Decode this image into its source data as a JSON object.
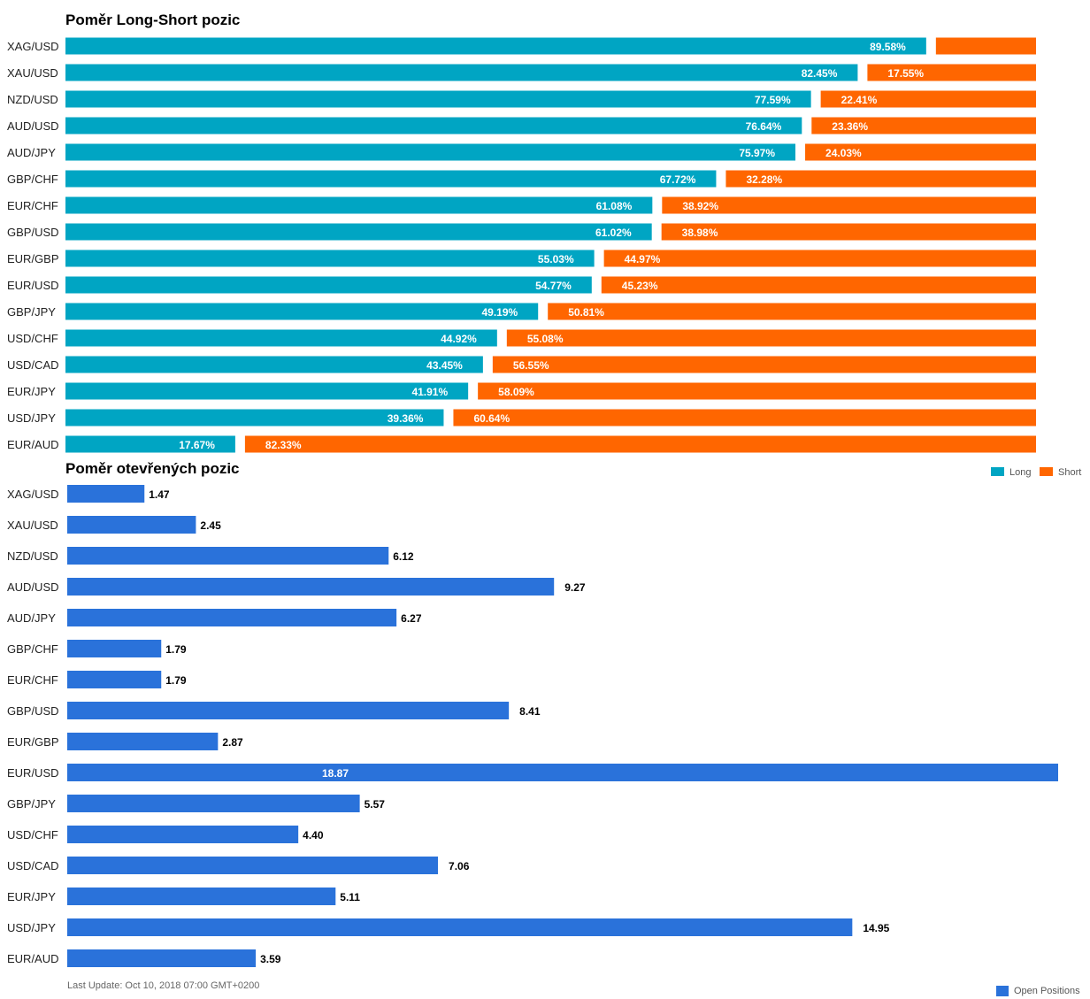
{
  "colors": {
    "long": "#00A5C3",
    "short": "#FF6600",
    "open_positions": "#2A72DA",
    "label_text": "#222222",
    "bar_value_text": "#ffffff",
    "footnote_text": "#666666"
  },
  "chart_data": [
    {
      "type": "bar",
      "orientation": "horizontal",
      "stacked_percent": true,
      "title": "Poměr Long-Short pozic",
      "categories": [
        "XAG/USD",
        "XAU/USD",
        "NZD/USD",
        "AUD/USD",
        "AUD/JPY",
        "GBP/CHF",
        "EUR/CHF",
        "GBP/USD",
        "EUR/GBP",
        "EUR/USD",
        "GBP/JPY",
        "USD/CHF",
        "USD/CAD",
        "EUR/JPY",
        "USD/JPY",
        "EUR/AUD"
      ],
      "series": [
        {
          "name": "Long",
          "values": [
            89.58,
            82.45,
            77.59,
            76.64,
            75.97,
            67.72,
            61.08,
            61.02,
            55.03,
            54.77,
            49.19,
            44.92,
            43.45,
            41.91,
            39.36,
            17.67
          ],
          "labels": [
            "89.58%",
            "82.45%",
            "77.59%",
            "76.64%",
            "75.97%",
            "67.72%",
            "61.08%",
            "61.02%",
            "55.03%",
            "54.77%",
            "49.19%",
            "44.92%",
            "43.45%",
            "41.91%",
            "39.36%",
            "17.67%"
          ]
        },
        {
          "name": "Short",
          "values": [
            10.42,
            17.55,
            22.41,
            23.36,
            24.03,
            32.28,
            38.92,
            38.98,
            44.97,
            45.23,
            50.81,
            55.08,
            56.55,
            58.09,
            60.64,
            82.33
          ],
          "labels": [
            "",
            "17.55%",
            "22.41%",
            "23.36%",
            "24.03%",
            "32.28%",
            "38.92%",
            "38.98%",
            "44.97%",
            "45.23%",
            "50.81%",
            "55.08%",
            "56.55%",
            "58.09%",
            "60.64%",
            "82.33%"
          ]
        }
      ],
      "legend": {
        "position": "bottom-right",
        "entries": [
          "Long",
          "Short"
        ]
      },
      "grid": false
    },
    {
      "type": "bar",
      "orientation": "horizontal",
      "title": "Poměr otevřených pozic",
      "categories": [
        "XAG/USD",
        "XAU/USD",
        "NZD/USD",
        "AUD/USD",
        "AUD/JPY",
        "GBP/CHF",
        "EUR/CHF",
        "GBP/USD",
        "EUR/GBP",
        "EUR/USD",
        "GBP/JPY",
        "USD/CHF",
        "USD/CAD",
        "EUR/JPY",
        "USD/JPY",
        "EUR/AUD"
      ],
      "series": [
        {
          "name": "Open Positions",
          "values": [
            1.47,
            2.45,
            6.12,
            9.27,
            6.27,
            1.79,
            1.79,
            8.41,
            2.87,
            18.87,
            5.57,
            4.4,
            7.06,
            5.11,
            14.95,
            3.59
          ],
          "labels": [
            "1.47",
            "2.45",
            "6.12",
            "9.27",
            "6.27",
            "1.79",
            "1.79",
            "8.41",
            "2.87",
            "18.87",
            "5.57",
            "4.40",
            "7.06",
            "5.11",
            "14.95",
            "3.59"
          ]
        }
      ],
      "xlim": [
        0,
        18.87
      ],
      "legend": {
        "position": "bottom-right",
        "entries": [
          "Open Positions"
        ]
      },
      "grid": false
    }
  ],
  "footnote": "Last Update: Oct 10, 2018 07:00 GMT+0200"
}
